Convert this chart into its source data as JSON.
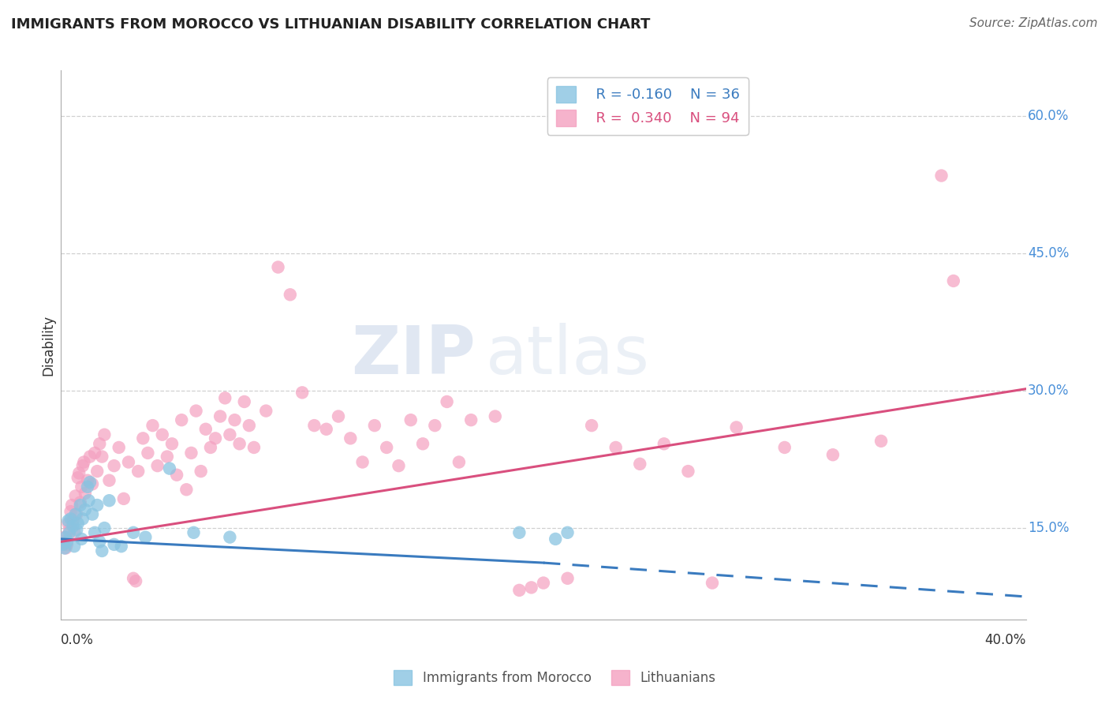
{
  "title": "IMMIGRANTS FROM MOROCCO VS LITHUANIAN DISABILITY CORRELATION CHART",
  "source": "Source: ZipAtlas.com",
  "ylabel": "Disability",
  "xlim": [
    0.0,
    40.0
  ],
  "ylim": [
    5.0,
    65.0
  ],
  "yticks": [
    15.0,
    30.0,
    45.0,
    60.0
  ],
  "legend_r_blue": "R = -0.160",
  "legend_n_blue": "N = 36",
  "legend_r_pink": "R =  0.340",
  "legend_n_pink": "N = 94",
  "blue_color": "#89c4e1",
  "pink_color": "#f4a0c0",
  "blue_line_color": "#3a7bbf",
  "pink_line_color": "#d94f7e",
  "watermark_zip": "ZIP",
  "watermark_atlas": "atlas",
  "blue_scatter": [
    [
      0.1,
      13.2
    ],
    [
      0.15,
      12.8
    ],
    [
      0.2,
      14.0
    ],
    [
      0.25,
      13.5
    ],
    [
      0.3,
      15.8
    ],
    [
      0.35,
      14.5
    ],
    [
      0.4,
      16.0
    ],
    [
      0.5,
      15.2
    ],
    [
      0.55,
      13.0
    ],
    [
      0.6,
      16.5
    ],
    [
      0.65,
      14.8
    ],
    [
      0.7,
      15.5
    ],
    [
      0.8,
      17.5
    ],
    [
      0.85,
      13.8
    ],
    [
      0.9,
      16.0
    ],
    [
      1.0,
      17.0
    ],
    [
      1.1,
      19.5
    ],
    [
      1.15,
      18.0
    ],
    [
      1.2,
      20.0
    ],
    [
      1.3,
      16.5
    ],
    [
      1.4,
      14.5
    ],
    [
      1.5,
      17.5
    ],
    [
      1.6,
      13.5
    ],
    [
      1.7,
      12.5
    ],
    [
      1.8,
      15.0
    ],
    [
      2.0,
      18.0
    ],
    [
      2.2,
      13.2
    ],
    [
      2.5,
      13.0
    ],
    [
      3.0,
      14.5
    ],
    [
      3.5,
      14.0
    ],
    [
      4.5,
      21.5
    ],
    [
      5.5,
      14.5
    ],
    [
      7.0,
      14.0
    ],
    [
      19.0,
      14.5
    ],
    [
      20.5,
      13.8
    ],
    [
      21.0,
      14.5
    ]
  ],
  "pink_scatter": [
    [
      0.1,
      13.5
    ],
    [
      0.15,
      14.0
    ],
    [
      0.2,
      12.8
    ],
    [
      0.25,
      13.2
    ],
    [
      0.3,
      15.5
    ],
    [
      0.35,
      14.8
    ],
    [
      0.4,
      16.8
    ],
    [
      0.45,
      17.5
    ],
    [
      0.5,
      15.8
    ],
    [
      0.55,
      14.5
    ],
    [
      0.6,
      18.5
    ],
    [
      0.65,
      16.5
    ],
    [
      0.7,
      20.5
    ],
    [
      0.75,
      21.0
    ],
    [
      0.8,
      17.8
    ],
    [
      0.85,
      19.5
    ],
    [
      0.9,
      21.8
    ],
    [
      0.95,
      22.2
    ],
    [
      1.0,
      18.8
    ],
    [
      1.1,
      20.2
    ],
    [
      1.2,
      22.8
    ],
    [
      1.3,
      19.8
    ],
    [
      1.4,
      23.2
    ],
    [
      1.5,
      21.2
    ],
    [
      1.6,
      24.2
    ],
    [
      1.7,
      22.8
    ],
    [
      1.8,
      25.2
    ],
    [
      2.0,
      20.2
    ],
    [
      2.2,
      21.8
    ],
    [
      2.4,
      23.8
    ],
    [
      2.6,
      18.2
    ],
    [
      2.8,
      22.2
    ],
    [
      3.0,
      9.5
    ],
    [
      3.1,
      9.2
    ],
    [
      3.2,
      21.2
    ],
    [
      3.4,
      24.8
    ],
    [
      3.6,
      23.2
    ],
    [
      3.8,
      26.2
    ],
    [
      4.0,
      21.8
    ],
    [
      4.2,
      25.2
    ],
    [
      4.4,
      22.8
    ],
    [
      4.6,
      24.2
    ],
    [
      4.8,
      20.8
    ],
    [
      5.0,
      26.8
    ],
    [
      5.2,
      19.2
    ],
    [
      5.4,
      23.2
    ],
    [
      5.6,
      27.8
    ],
    [
      5.8,
      21.2
    ],
    [
      6.0,
      25.8
    ],
    [
      6.2,
      23.8
    ],
    [
      6.4,
      24.8
    ],
    [
      6.6,
      27.2
    ],
    [
      6.8,
      29.2
    ],
    [
      7.0,
      25.2
    ],
    [
      7.2,
      26.8
    ],
    [
      7.4,
      24.2
    ],
    [
      7.6,
      28.8
    ],
    [
      7.8,
      26.2
    ],
    [
      8.0,
      23.8
    ],
    [
      8.5,
      27.8
    ],
    [
      9.0,
      43.5
    ],
    [
      9.5,
      40.5
    ],
    [
      10.0,
      29.8
    ],
    [
      10.5,
      26.2
    ],
    [
      11.0,
      25.8
    ],
    [
      11.5,
      27.2
    ],
    [
      12.0,
      24.8
    ],
    [
      12.5,
      22.2
    ],
    [
      13.0,
      26.2
    ],
    [
      13.5,
      23.8
    ],
    [
      14.0,
      21.8
    ],
    [
      14.5,
      26.8
    ],
    [
      15.0,
      24.2
    ],
    [
      15.5,
      26.2
    ],
    [
      16.0,
      28.8
    ],
    [
      16.5,
      22.2
    ],
    [
      17.0,
      26.8
    ],
    [
      18.0,
      27.2
    ],
    [
      19.0,
      8.2
    ],
    [
      19.5,
      8.5
    ],
    [
      20.0,
      9.0
    ],
    [
      21.0,
      9.5
    ],
    [
      22.0,
      26.2
    ],
    [
      23.0,
      23.8
    ],
    [
      24.0,
      22.0
    ],
    [
      25.0,
      24.2
    ],
    [
      26.0,
      21.2
    ],
    [
      27.0,
      9.0
    ],
    [
      28.0,
      26.0
    ],
    [
      30.0,
      23.8
    ],
    [
      32.0,
      23.0
    ],
    [
      34.0,
      24.5
    ],
    [
      36.5,
      53.5
    ],
    [
      37.0,
      42.0
    ]
  ],
  "blue_regression": {
    "x_start": 0.0,
    "y_start": 13.8,
    "x_end": 20.0,
    "y_end": 11.2,
    "x_dash_end": 40.0,
    "y_dash_end": 7.5
  },
  "pink_regression": {
    "x_start": 0.0,
    "y_start": 13.5,
    "x_end": 40.0,
    "y_end": 30.2
  }
}
